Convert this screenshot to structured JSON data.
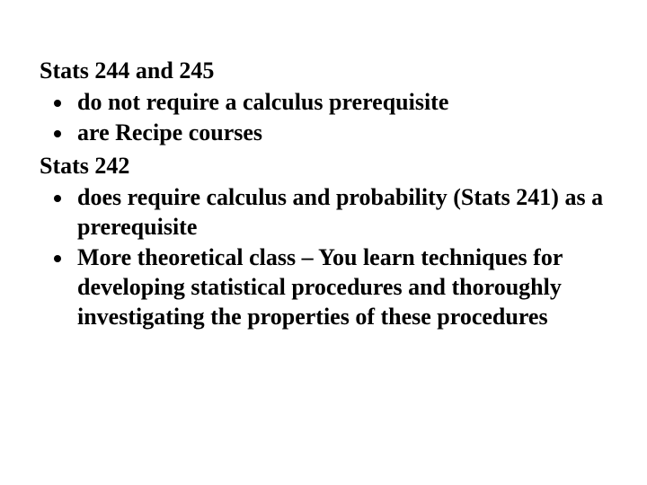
{
  "text_color": "#000000",
  "background_color": "#ffffff",
  "font_family": "Times New Roman",
  "font_size_pt": 26,
  "font_weight": "bold",
  "sections": {
    "a": {
      "heading": "Stats 244 and 245",
      "bullets": [
        "do not require a calculus prerequisite",
        "are Recipe courses"
      ]
    },
    "b": {
      "heading": "Stats 242",
      "bullets": [
        "does require calculus and probability (Stats 241) as a prerequisite",
        "More theoretical class – You learn techniques for developing  statistical procedures and thoroughly investigating the properties of these procedures"
      ]
    }
  }
}
